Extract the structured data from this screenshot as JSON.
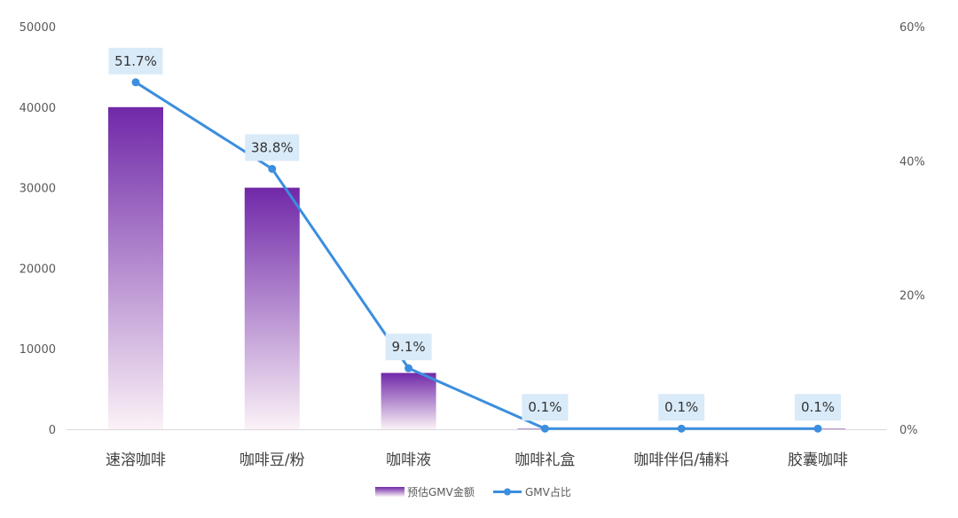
{
  "chart_data": {
    "type": "bar",
    "categories": [
      "速溶咖啡",
      "咖啡豆/粉",
      "咖啡液",
      "咖啡礼盒",
      "咖啡伴侣/辅料",
      "胶囊咖啡"
    ],
    "series": [
      {
        "name": "预估GMV金额",
        "type": "bar",
        "axis": "left",
        "values": [
          40000,
          30000,
          7000,
          100,
          100,
          100
        ]
      },
      {
        "name": "GMV占比",
        "type": "line",
        "axis": "right",
        "values": [
          51.7,
          38.8,
          9.1,
          0.1,
          0.1,
          0.1
        ],
        "labels": [
          "51.7%",
          "38.8%",
          "9.1%",
          "0.1%",
          "0.1%",
          "0.1%"
        ]
      }
    ],
    "ylim": [
      0,
      50000
    ],
    "yticks": [
      "0",
      "10000",
      "20000",
      "30000",
      "40000",
      "50000"
    ],
    "y2lim": [
      0,
      60
    ],
    "y2ticks": [
      "0%",
      "20%",
      "40%",
      "60%"
    ],
    "legend_position": "bottom",
    "grid": false,
    "colors": {
      "bar_top": "#7028a8",
      "bar_bottom": "#fbf2f7",
      "line": "#3c8ede",
      "label_bg": "#d9eaf8"
    }
  }
}
